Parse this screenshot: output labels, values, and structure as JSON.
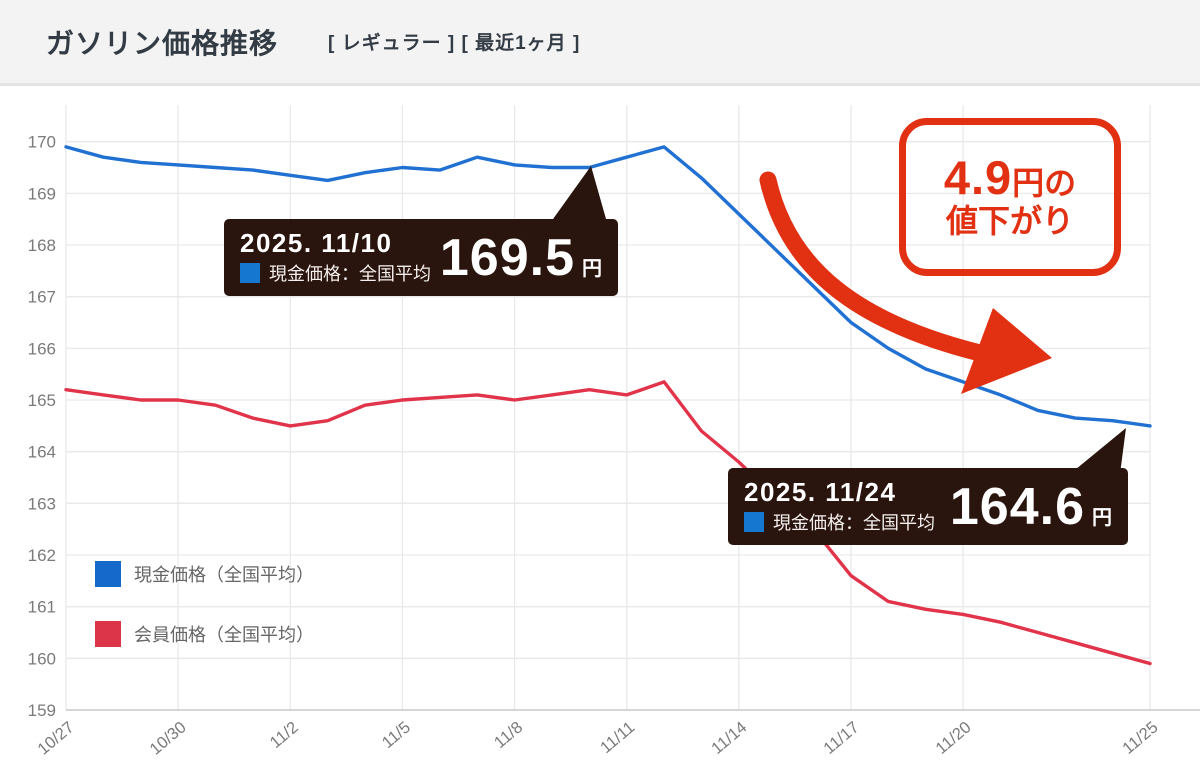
{
  "header": {
    "title": "ガソリン価格推移",
    "tags": "[ レギュラー ] [ 最近1ヶ月 ]"
  },
  "chart_data": {
    "type": "line",
    "title": "ガソリン価格推移（レギュラー・最近1ヶ月）",
    "x": [
      "10/27",
      "10/28",
      "10/29",
      "10/30",
      "10/31",
      "11/1",
      "11/2",
      "11/3",
      "11/4",
      "11/5",
      "11/6",
      "11/7",
      "11/8",
      "11/9",
      "11/10",
      "11/11",
      "11/12",
      "11/13",
      "11/14",
      "11/15",
      "11/16",
      "11/17",
      "11/18",
      "11/19",
      "11/20",
      "11/21",
      "11/22",
      "11/23",
      "11/24",
      "11/25"
    ],
    "series": [
      {
        "name": "現金価格（全国平均）",
        "color": "#2171d3",
        "values": [
          169.9,
          169.7,
          169.6,
          169.55,
          169.5,
          169.45,
          169.35,
          169.25,
          169.4,
          169.5,
          169.45,
          169.7,
          169.55,
          169.5,
          169.5,
          169.7,
          169.9,
          169.3,
          168.6,
          167.9,
          167.2,
          166.5,
          166.0,
          165.6,
          165.35,
          165.1,
          164.8,
          164.65,
          164.6,
          164.5
        ]
      },
      {
        "name": "会員価格（全国平均）",
        "color": "#e13349",
        "values": [
          165.2,
          165.1,
          165.0,
          165.0,
          164.9,
          164.65,
          164.5,
          164.6,
          164.9,
          165.0,
          165.05,
          165.1,
          165.0,
          165.1,
          165.2,
          165.1,
          165.35,
          164.4,
          163.8,
          163.1,
          162.5,
          161.6,
          161.1,
          160.95,
          160.85,
          160.7,
          160.5,
          160.3,
          160.1,
          159.9
        ]
      }
    ],
    "ylim": [
      159,
      170
    ],
    "yticks": [
      170,
      169,
      168,
      167,
      166,
      165,
      164,
      163,
      162,
      161,
      160,
      159
    ],
    "xtick_labels": [
      "10/27",
      "10/30",
      "11/2",
      "11/5",
      "11/8",
      "11/11",
      "11/14",
      "11/17",
      "11/20",
      "11/25"
    ],
    "grid": true,
    "grid_color": "#e9e9e9",
    "axis_color": "#c9c9c9",
    "tick_color": "#7a7a7a",
    "legend_position": "inside-bottom-left",
    "xlabel": "",
    "ylabel": ""
  },
  "tooltips": [
    {
      "date": "2025. 11/10",
      "series_label": "現金価格：全国平均",
      "value": "169.5",
      "unit": "円",
      "swatch_color": "#1577d0"
    },
    {
      "date": "2025. 11/24",
      "series_label": "現金価格：全国平均",
      "value": "164.6",
      "unit": "円",
      "swatch_color": "#1577d0"
    }
  ],
  "annotation": {
    "value": "4.9",
    "suffix": "円の",
    "line2": "値下がり",
    "color": "#e23012"
  },
  "legend": {
    "items": [
      {
        "label": "現金価格（全国平均）",
        "color": "#1569cb"
      },
      {
        "label": "会員価格（全国平均）",
        "color": "#dc3448"
      }
    ]
  },
  "colors": {
    "tooltip_bg": "#2a140e"
  }
}
